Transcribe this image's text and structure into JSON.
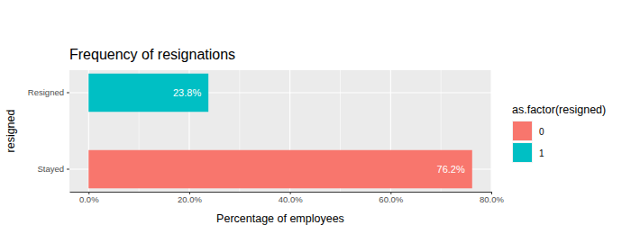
{
  "chart_data": {
    "type": "bar",
    "title": "Frequency of resignations",
    "x_label": "Percentage of employees",
    "y_label": "resigned",
    "legend_title": "as.factor(resigned)",
    "categories": [
      "Resigned",
      "Stayed"
    ],
    "series": [
      {
        "name": "0",
        "color": "#F8766D",
        "values": [
          null,
          76.2
        ],
        "value_labels": [
          null,
          "76.2%"
        ]
      },
      {
        "name": "1",
        "color": "#00BFC4",
        "values": [
          23.8,
          null
        ],
        "value_labels": [
          "23.8%",
          null
        ]
      }
    ],
    "xlim": [
      -3.81,
      80.0
    ],
    "xticks": [
      {
        "value": 0,
        "label": "0.0%"
      },
      {
        "value": 20,
        "label": "20.0%"
      },
      {
        "value": 40,
        "label": "40.0%"
      },
      {
        "value": 60,
        "label": "60.0%"
      },
      {
        "value": 80,
        "label": "80.0%"
      }
    ],
    "orientation": "horizontal",
    "grid": true,
    "data_labels": true,
    "legend": "right"
  }
}
